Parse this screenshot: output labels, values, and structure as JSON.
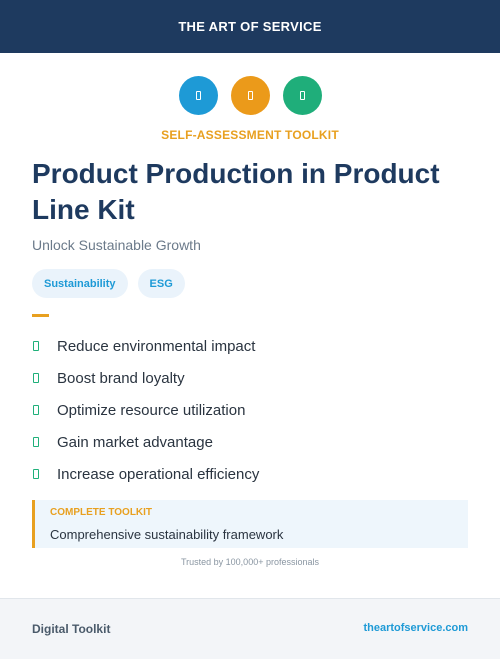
{
  "header": {
    "brand": "THE ART OF SERVICE"
  },
  "icons": [
    {
      "name": "blue-badge-icon",
      "color": "#1e9ad6"
    },
    {
      "name": "orange-badge-icon",
      "color": "#eb9a1a"
    },
    {
      "name": "green-badge-icon",
      "color": "#1fae7a"
    }
  ],
  "eyebrow": "SELF-ASSESSMENT TOOLKIT",
  "title": "Product Production in Product Line Kit",
  "subtitle": "Unlock Sustainable Growth",
  "tags": [
    "Sustainability",
    "ESG"
  ],
  "benefits": [
    "Reduce environmental impact",
    "Boost brand loyalty",
    "Optimize resource utilization",
    "Gain market advantage",
    "Increase operational efficiency"
  ],
  "callout": {
    "label": "COMPLETE TOOLKIT",
    "text": "Comprehensive sustainability framework"
  },
  "trusted": "Trusted by 100,000+ professionals",
  "footer": {
    "left": "Digital Toolkit",
    "right": "theartofservice.com"
  },
  "colors": {
    "navy": "#1e3a5f",
    "accent_orange": "#e8a020",
    "accent_blue": "#1e9ad6",
    "accent_green": "#1fb07a"
  }
}
